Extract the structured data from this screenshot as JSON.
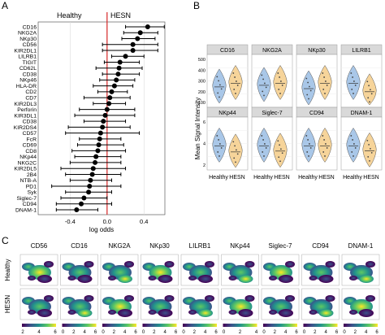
{
  "panels": {
    "a": "A",
    "b": "B",
    "c": "C"
  },
  "forest": {
    "group_left": "Healthy",
    "group_right": "HESN",
    "xlabel": "log odds",
    "xticks": [
      "-0.4",
      "0.0",
      "0.4"
    ],
    "colors": {
      "refline": "#d62728",
      "point": "#000000",
      "grid": "#dcdcdc"
    }
  },
  "violins": {
    "ylabel": "Mean Signal Intensity",
    "xlabels": [
      "Healthy",
      "HESN"
    ],
    "colors": {
      "healthy": "#a9c7e8",
      "hesn": "#f6d49a",
      "strip": "#d9d9d9",
      "panel_border": "#9a9a9a"
    }
  },
  "umap": {
    "markers": [
      "CD56",
      "CD16",
      "NKG2A",
      "NKp30",
      "LILRB1",
      "NKp44",
      "Siglec-7",
      "CD94",
      "DNAM-1"
    ],
    "rows": [
      "Healthy",
      "HESN"
    ],
    "colorbars": [
      {
        "ticks": [
          "2",
          "4",
          "6"
        ]
      },
      {
        "ticks": [
          "0",
          "2",
          "4",
          "6"
        ]
      },
      {
        "ticks": [
          "0",
          "2",
          "4",
          "6"
        ]
      },
      {
        "ticks": [
          "0",
          "2",
          "4",
          "6"
        ]
      },
      {
        "ticks": [
          "0",
          "2",
          "4",
          "6"
        ]
      },
      {
        "ticks": [
          "0",
          "2",
          "4"
        ]
      },
      {
        "ticks": [
          "0",
          "2",
          "4",
          "6"
        ]
      },
      {
        "ticks": [
          "0",
          "2",
          "4",
          "6"
        ]
      },
      {
        "ticks": [
          "0",
          "2",
          "4",
          "6"
        ]
      }
    ],
    "colors": {
      "low": "#440154",
      "mid": "#21918c",
      "high": "#fde725"
    }
  },
  "chart_data": [
    {
      "type": "scatter",
      "subtype": "forest-plot",
      "xlabel": "log odds",
      "xlim": [
        -0.72,
        0.6
      ],
      "reference_line": 0,
      "categories": [
        "CD16",
        "NKG2A",
        "NKp30",
        "CD56",
        "KIR2DL1",
        "LILRB1",
        "TIGIT",
        "CD62L",
        "CD38",
        "NKp46",
        "HLA-DR",
        "CD2",
        "CD7",
        "KIR2DL3",
        "Perforin",
        "KIR3DL1",
        "CD38",
        "KIR2DS4",
        "CD57",
        "FcR",
        "CD69",
        "CD8",
        "NKp44",
        "NKG2C",
        "KIR2DL5",
        "2B4",
        "NTB-A",
        "PD1",
        "Syk",
        "Siglec-7",
        "CD94",
        "DNAM-1"
      ],
      "estimates": [
        0.44,
        0.36,
        0.33,
        0.28,
        0.28,
        0.2,
        0.14,
        0.13,
        0.12,
        0.1,
        0.08,
        0.05,
        0.03,
        0.02,
        0.0,
        -0.02,
        -0.04,
        -0.05,
        -0.07,
        -0.08,
        -0.09,
        -0.1,
        -0.12,
        -0.13,
        -0.15,
        -0.16,
        -0.18,
        -0.19,
        -0.2,
        -0.25,
        -0.28,
        -0.33
      ],
      "ci_low": [
        0.2,
        0.18,
        0.16,
        -0.05,
        -0.05,
        0.05,
        -0.03,
        -0.12,
        -0.05,
        -0.08,
        -0.15,
        -0.1,
        -0.25,
        -0.15,
        -0.3,
        -0.35,
        -0.25,
        -0.42,
        -0.45,
        -0.3,
        -0.32,
        -0.38,
        -0.35,
        -0.4,
        -0.5,
        -0.45,
        -0.4,
        -0.6,
        -0.45,
        -0.5,
        -0.55,
        -0.55
      ],
      "ci_high": [
        0.62,
        0.55,
        0.52,
        0.55,
        0.55,
        0.4,
        0.35,
        0.38,
        0.35,
        0.3,
        0.28,
        0.22,
        0.25,
        0.2,
        0.3,
        0.3,
        0.2,
        0.25,
        0.35,
        0.15,
        0.18,
        0.2,
        0.15,
        0.15,
        0.2,
        0.15,
        0.05,
        0.15,
        0.05,
        0.0,
        0.05,
        -0.1
      ]
    },
    {
      "type": "violin",
      "ylabel": "Mean Signal Intensity",
      "groups": [
        "Healthy",
        "HESN"
      ],
      "panels": [
        {
          "marker": "CD16",
          "yticks": [
            "100",
            "200",
            "300",
            "400",
            "500"
          ],
          "healthy_median": 170,
          "hesn_median": 200
        },
        {
          "marker": "NKG2A",
          "healthy_median": 11,
          "hesn_median": 12
        },
        {
          "marker": "NKp30",
          "healthy_median": 7,
          "hesn_median": 9
        },
        {
          "marker": "LILRB1",
          "healthy_median": 20,
          "hesn_median": 13
        },
        {
          "marker": "NKp44",
          "yticks": [
            "2",
            "4",
            "6"
          ],
          "healthy_median": 4,
          "hesn_median": 3
        },
        {
          "marker": "Siglec-7",
          "healthy_median": 14,
          "hesn_median": 11
        },
        {
          "marker": "CD94",
          "healthy_median": 15,
          "hesn_median": 15
        },
        {
          "marker": "DNAM-1",
          "healthy_median": 5,
          "hesn_median": 4
        }
      ]
    }
  ]
}
